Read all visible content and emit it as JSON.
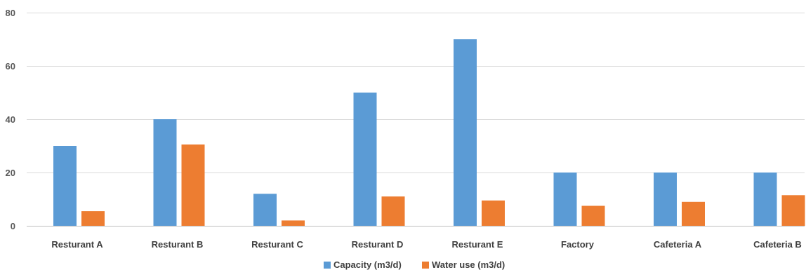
{
  "chart_data": {
    "type": "bar",
    "categories": [
      "Resturant A",
      "Resturant B",
      "Resturant C",
      "Resturant D",
      "Resturant E",
      "Factory",
      "Cafeteria A",
      "Cafeteria B"
    ],
    "series": [
      {
        "name": "Capacity (m3/d)",
        "color": "#5b9bd5",
        "values": [
          30,
          40,
          12,
          50,
          70,
          20,
          20,
          20
        ]
      },
      {
        "name": "Water use (m3/d)",
        "color": "#ed7d31",
        "values": [
          5.5,
          30.5,
          2,
          11,
          9.5,
          7.5,
          9,
          11.5
        ]
      }
    ],
    "yticks": [
      0,
      20,
      40,
      60,
      80
    ],
    "ylim": [
      0,
      80
    ],
    "grid": true,
    "legend_position": "bottom-center",
    "title": "",
    "xlabel": "",
    "ylabel": ""
  }
}
